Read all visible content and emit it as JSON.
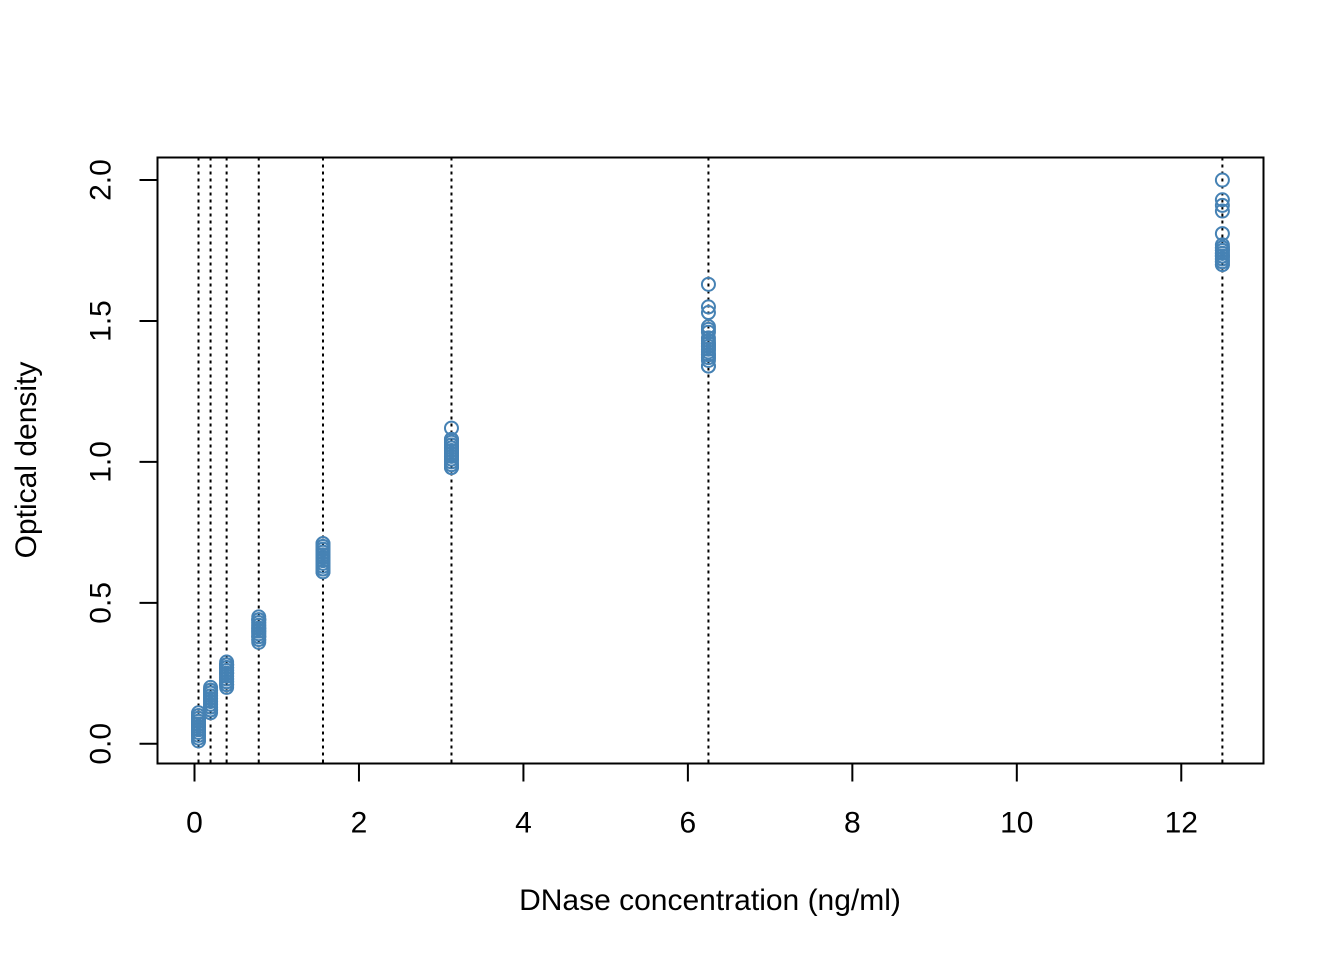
{
  "chart_data": {
    "type": "scatter",
    "title": "",
    "xlabel": "DNase concentration (ng/ml)",
    "ylabel": "Optical density",
    "xlim": [
      -0.45,
      13.0
    ],
    "ylim": [
      -0.07,
      2.08
    ],
    "x_ticks": [
      0,
      2,
      4,
      6,
      8,
      10,
      12
    ],
    "x_tick_labels": [
      "0",
      "2",
      "4",
      "6",
      "8",
      "10",
      "12"
    ],
    "y_ticks": [
      0.0,
      0.5,
      1.0,
      1.5,
      2.0
    ],
    "y_tick_labels": [
      "0.0",
      "0.5",
      "1.0",
      "1.5",
      "2.0"
    ],
    "grid": false,
    "point_color": "#4682B4",
    "reference_line_color": "#000000",
    "reference_lines_x": [
      0.0488,
      0.1953,
      0.3906,
      0.7812,
      1.5625,
      3.125,
      6.25,
      12.5
    ],
    "series": [
      {
        "name": "",
        "x": [
          0.0488,
          0.0488,
          0.0488,
          0.0488,
          0.0488,
          0.0488,
          0.0488,
          0.0488,
          0.0488,
          0.0488,
          0.0488,
          0.0488,
          0.0488,
          0.0488,
          0.0488,
          0.0488,
          0.0488,
          0.0488,
          0.0488,
          0.0488,
          0.0488,
          0.0488,
          0.1953,
          0.1953,
          0.1953,
          0.1953,
          0.1953,
          0.1953,
          0.1953,
          0.1953,
          0.1953,
          0.1953,
          0.1953,
          0.1953,
          0.1953,
          0.1953,
          0.1953,
          0.1953,
          0.1953,
          0.1953,
          0.1953,
          0.1953,
          0.1953,
          0.1953,
          0.3906,
          0.3906,
          0.3906,
          0.3906,
          0.3906,
          0.3906,
          0.3906,
          0.3906,
          0.3906,
          0.3906,
          0.3906,
          0.3906,
          0.3906,
          0.3906,
          0.3906,
          0.3906,
          0.3906,
          0.3906,
          0.3906,
          0.3906,
          0.3906,
          0.3906,
          0.7812,
          0.7812,
          0.7812,
          0.7812,
          0.7812,
          0.7812,
          0.7812,
          0.7812,
          0.7812,
          0.7812,
          0.7812,
          0.7812,
          0.7812,
          0.7812,
          0.7812,
          0.7812,
          0.7812,
          0.7812,
          0.7812,
          0.7812,
          0.7812,
          0.7812,
          1.5625,
          1.5625,
          1.5625,
          1.5625,
          1.5625,
          1.5625,
          1.5625,
          1.5625,
          1.5625,
          1.5625,
          1.5625,
          1.5625,
          1.5625,
          1.5625,
          1.5625,
          1.5625,
          1.5625,
          1.5625,
          1.5625,
          1.5625,
          1.5625,
          1.5625,
          3.125,
          3.125,
          3.125,
          3.125,
          3.125,
          3.125,
          3.125,
          3.125,
          3.125,
          3.125,
          3.125,
          3.125,
          3.125,
          3.125,
          3.125,
          3.125,
          3.125,
          3.125,
          3.125,
          3.125,
          3.125,
          3.125,
          6.25,
          6.25,
          6.25,
          6.25,
          6.25,
          6.25,
          6.25,
          6.25,
          6.25,
          6.25,
          6.25,
          6.25,
          6.25,
          6.25,
          6.25,
          6.25,
          6.25,
          6.25,
          6.25,
          6.25,
          6.25,
          6.25,
          12.5,
          12.5,
          12.5,
          12.5,
          12.5,
          12.5,
          12.5,
          12.5,
          12.5,
          12.5,
          12.5,
          12.5,
          12.5,
          12.5,
          12.5,
          12.5,
          12.5,
          12.5,
          12.5,
          12.5,
          12.5,
          12.5
        ],
        "y": [
          0.01,
          0.02,
          0.03,
          0.03,
          0.04,
          0.04,
          0.05,
          0.05,
          0.05,
          0.06,
          0.06,
          0.06,
          0.07,
          0.07,
          0.07,
          0.08,
          0.08,
          0.09,
          0.09,
          0.1,
          0.1,
          0.11,
          0.11,
          0.12,
          0.12,
          0.12,
          0.13,
          0.13,
          0.13,
          0.14,
          0.14,
          0.15,
          0.15,
          0.16,
          0.16,
          0.16,
          0.17,
          0.17,
          0.18,
          0.18,
          0.19,
          0.19,
          0.19,
          0.2,
          0.2,
          0.21,
          0.21,
          0.21,
          0.22,
          0.22,
          0.23,
          0.23,
          0.24,
          0.24,
          0.25,
          0.25,
          0.25,
          0.26,
          0.26,
          0.27,
          0.27,
          0.27,
          0.28,
          0.28,
          0.28,
          0.29,
          0.36,
          0.37,
          0.37,
          0.38,
          0.38,
          0.38,
          0.39,
          0.39,
          0.4,
          0.4,
          0.4,
          0.41,
          0.41,
          0.41,
          0.42,
          0.42,
          0.43,
          0.43,
          0.44,
          0.44,
          0.44,
          0.45,
          0.61,
          0.61,
          0.62,
          0.62,
          0.63,
          0.63,
          0.64,
          0.64,
          0.65,
          0.65,
          0.66,
          0.66,
          0.67,
          0.67,
          0.68,
          0.68,
          0.69,
          0.69,
          0.7,
          0.7,
          0.71,
          0.71,
          0.98,
          0.98,
          0.99,
          0.99,
          1.0,
          1.01,
          1.01,
          1.02,
          1.02,
          1.03,
          1.03,
          1.04,
          1.04,
          1.05,
          1.05,
          1.06,
          1.06,
          1.07,
          1.07,
          1.08,
          1.08,
          1.12,
          1.34,
          1.34,
          1.36,
          1.37,
          1.37,
          1.38,
          1.38,
          1.39,
          1.4,
          1.4,
          1.41,
          1.41,
          1.42,
          1.42,
          1.43,
          1.44,
          1.46,
          1.47,
          1.48,
          1.53,
          1.55,
          1.63,
          1.7,
          1.7,
          1.71,
          1.71,
          1.72,
          1.72,
          1.73,
          1.73,
          1.73,
          1.74,
          1.74,
          1.75,
          1.75,
          1.75,
          1.76,
          1.76,
          1.77,
          1.81,
          1.89,
          1.91,
          1.93,
          2.0
        ]
      }
    ]
  }
}
